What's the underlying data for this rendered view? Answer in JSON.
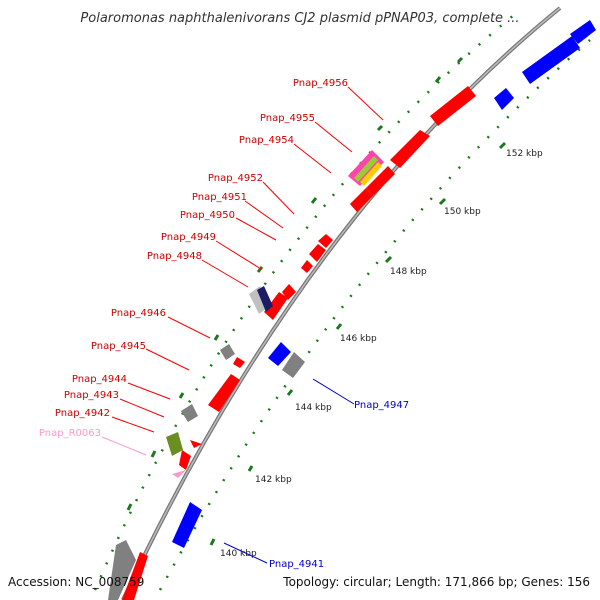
{
  "title": "Polaromonas naphthalenivorans CJ2 plasmid pPNAP03, complete ...",
  "footer": {
    "accession": "Accession: NC_008759",
    "summary": "Topology: circular; Length: 171,866 bp; Genes: 156"
  },
  "colors": {
    "forward_cds": "#ff0000",
    "reverse_cds": "#0000ff",
    "grey_feature": "#808080",
    "rna_label": "#ff99cc",
    "olive_feature": "#6b8e23",
    "label_red": "#cc0000",
    "label_blue": "#0000cc",
    "tick_green": "#1a7a1a"
  },
  "tick_labels": [
    "140 kbp",
    "142 kbp",
    "144 kbp",
    "146 kbp",
    "148 kbp",
    "150 kbp",
    "152 kbp"
  ],
  "gene_labels": {
    "left": [
      "Pnap_4956",
      "Pnap_4955",
      "Pnap_4954",
      "Pnap_4952",
      "Pnap_4951",
      "Pnap_4950",
      "Pnap_4949",
      "Pnap_4948",
      "Pnap_4946",
      "Pnap_4945",
      "Pnap_4944",
      "Pnap_4943",
      "Pnap_4942",
      "Pnap_R0063"
    ],
    "right": [
      "Pnap_4947",
      "Pnap_4941"
    ]
  }
}
